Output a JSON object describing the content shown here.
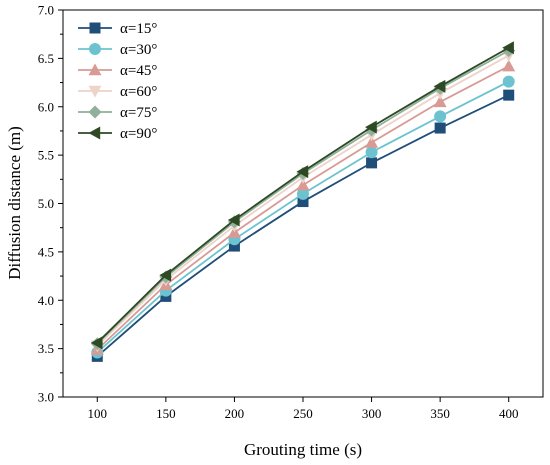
{
  "chart_data": {
    "type": "line",
    "xlabel": "Grouting time (s)",
    "ylabel": "Diffusion distance (m)",
    "x": [
      100,
      150,
      200,
      250,
      300,
      350,
      400
    ],
    "xlim": [
      75,
      425
    ],
    "ylim": [
      3.0,
      7.0
    ],
    "x_ticks": [
      "100",
      "150",
      "200",
      "250",
      "300",
      "350",
      "400"
    ],
    "y_ticks": [
      "3.0",
      "3.5",
      "4.0",
      "4.5",
      "5.0",
      "5.5",
      "6.0",
      "6.5",
      "7.0"
    ],
    "legend_position": "top-left",
    "grid": false,
    "series": [
      {
        "name": "α=15°",
        "color": "#1f4e79",
        "marker": "square",
        "values": [
          3.42,
          4.04,
          4.56,
          5.02,
          5.42,
          5.78,
          6.12
        ]
      },
      {
        "name": "α=30°",
        "color": "#6cc3cf",
        "marker": "circle",
        "values": [
          3.46,
          4.1,
          4.63,
          5.1,
          5.53,
          5.9,
          6.26
        ]
      },
      {
        "name": "α=45°",
        "color": "#d99a94",
        "marker": "triangle-up",
        "values": [
          3.49,
          4.16,
          4.7,
          5.19,
          5.63,
          6.05,
          6.42
        ]
      },
      {
        "name": "α=60°",
        "color": "#eed3c9",
        "marker": "triangle-down",
        "values": [
          3.53,
          4.21,
          4.77,
          5.27,
          5.71,
          6.14,
          6.53
        ]
      },
      {
        "name": "α=75°",
        "color": "#8fb09a",
        "marker": "diamond",
        "values": [
          3.55,
          4.24,
          4.81,
          5.31,
          5.76,
          6.19,
          6.58
        ]
      },
      {
        "name": "α=90°",
        "color": "#2e4a24",
        "marker": "triangle-left",
        "values": [
          3.56,
          4.26,
          4.83,
          5.33,
          5.79,
          6.21,
          6.61
        ]
      }
    ]
  }
}
